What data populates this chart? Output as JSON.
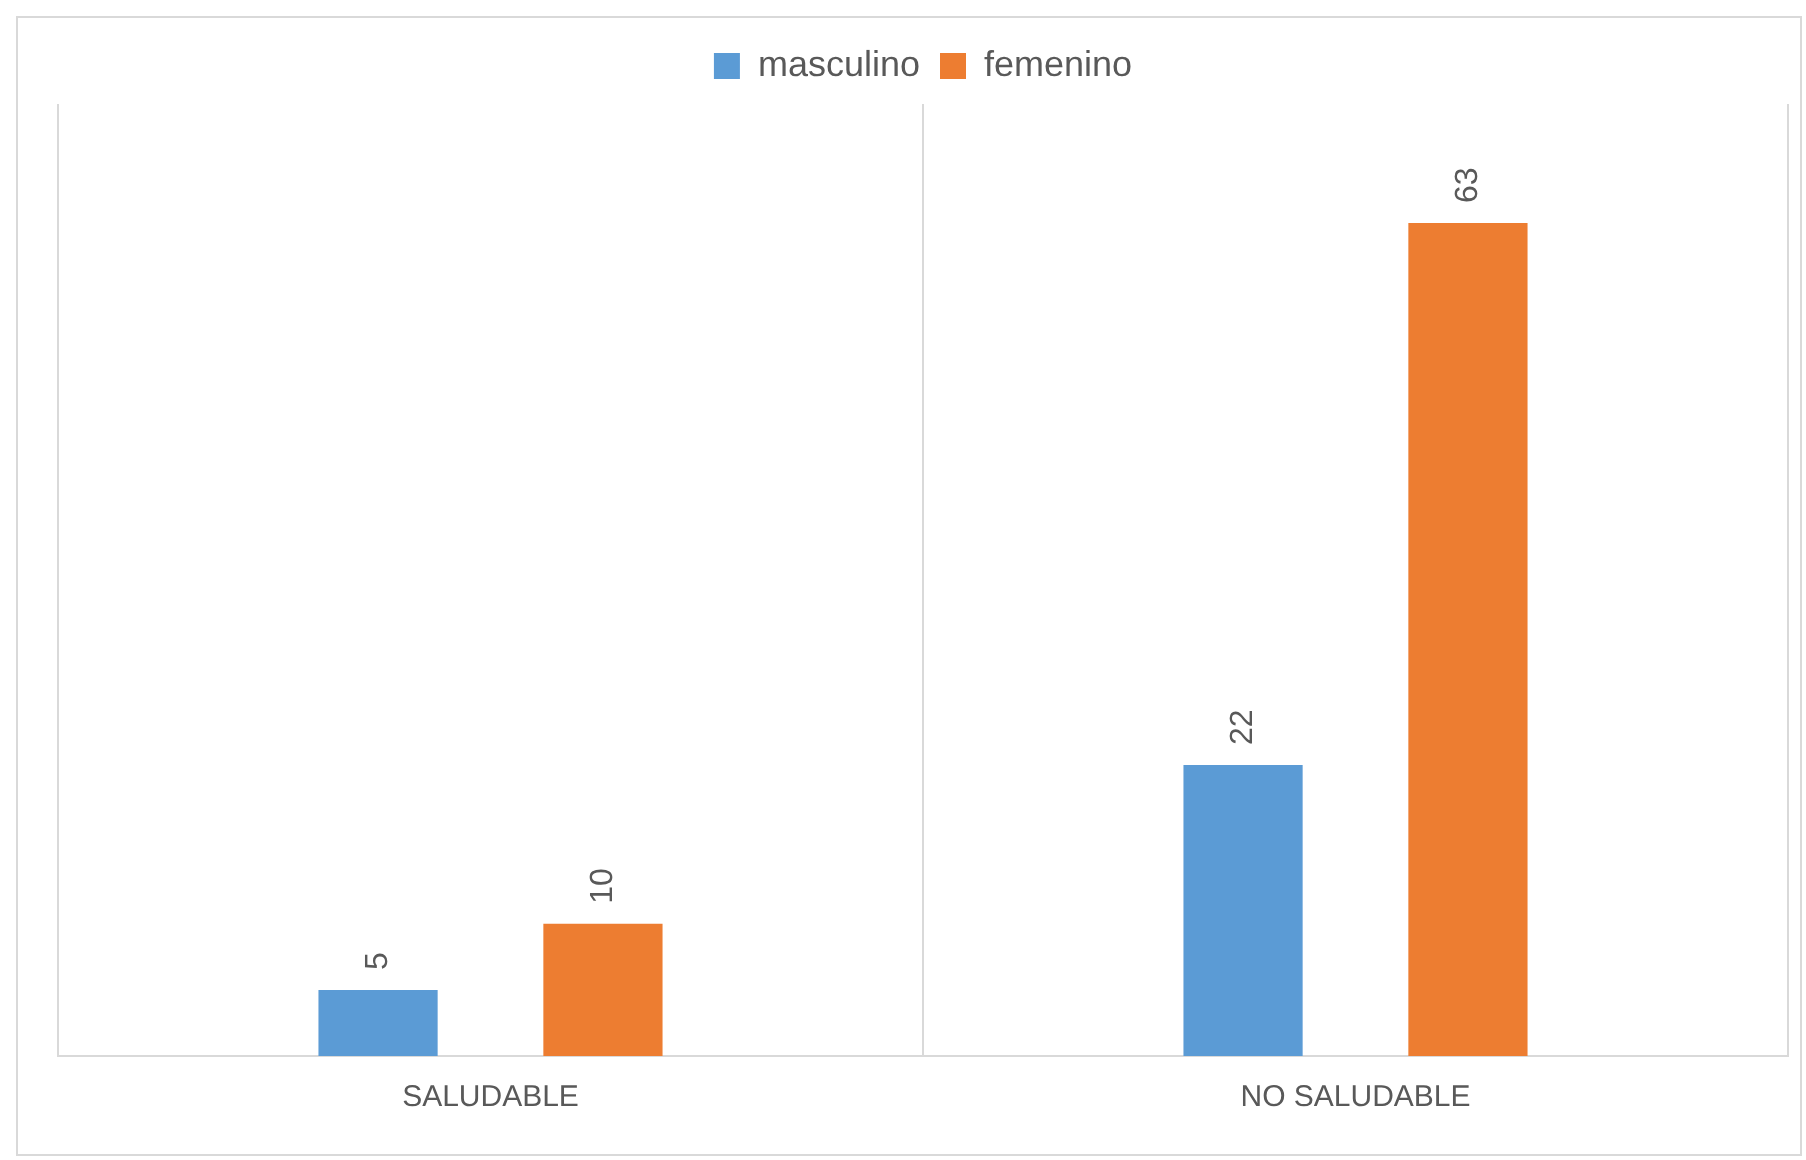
{
  "chart_data": {
    "type": "bar",
    "categories": [
      "SALUDABLE",
      "NO SALUDABLE"
    ],
    "series": [
      {
        "name": "masculino",
        "color": "#5b9bd5",
        "values": [
          5,
          22
        ]
      },
      {
        "name": "femenino",
        "color": "#ed7d31",
        "values": [
          10,
          63
        ]
      }
    ],
    "ylim": [
      0,
      72
    ],
    "data_labels": true,
    "legend": "top",
    "grid": "x"
  }
}
